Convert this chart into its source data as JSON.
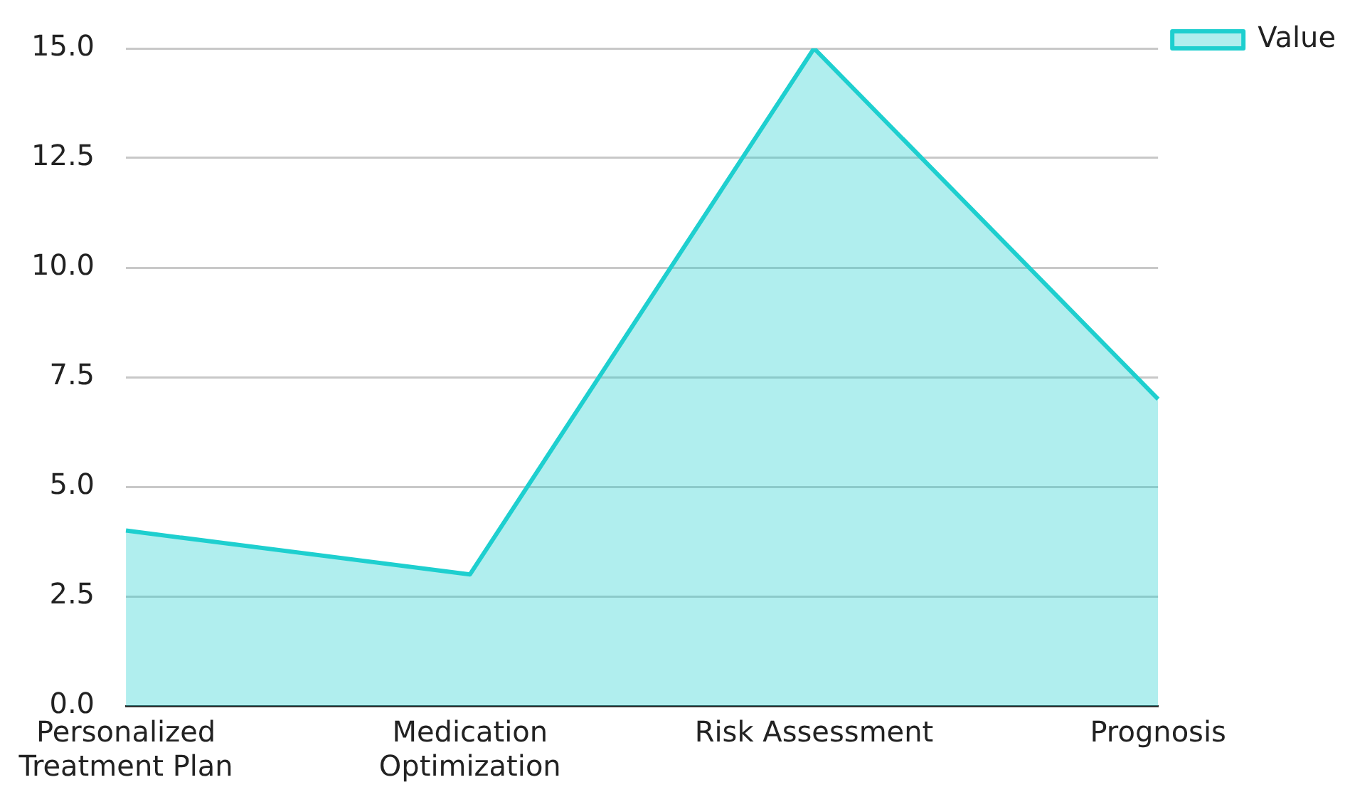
{
  "chart_data": {
    "type": "area",
    "categories": [
      "Personalized Treatment Plan",
      "Medication Optimization",
      "Risk Assessment",
      "Prognosis"
    ],
    "series": [
      {
        "name": "Value",
        "color": "#1ecfcf",
        "values": [
          4,
          3,
          15,
          7
        ]
      }
    ],
    "ylim": [
      0,
      15
    ],
    "yticks": [
      {
        "value": 0,
        "label": "0.0"
      },
      {
        "value": 2.5,
        "label": "2.5"
      },
      {
        "value": 5,
        "label": "5.0"
      },
      {
        "value": 7.5,
        "label": "7.5"
      },
      {
        "value": 10,
        "label": "10.0"
      },
      {
        "value": 12.5,
        "label": "12.5"
      },
      {
        "value": 15,
        "label": "15.0"
      }
    ],
    "grid": "y",
    "legend": "top right"
  }
}
